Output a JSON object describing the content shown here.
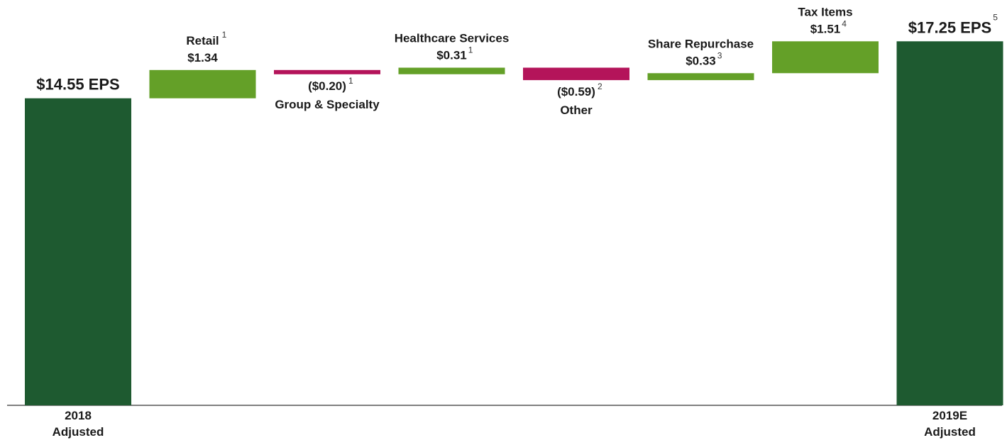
{
  "colors": {
    "total": "#1e5a30",
    "increase": "#64a028",
    "decrease": "#b4145a",
    "axis": "#555555"
  },
  "chart_data": {
    "type": "bar",
    "subtype": "waterfall",
    "title": "",
    "xlabel": "",
    "ylabel": "",
    "ylim": [
      0,
      18.2
    ],
    "grid": false,
    "bars": [
      {
        "kind": "total",
        "value": 14.55,
        "label": "$14.55 EPS",
        "sup": "",
        "name": "",
        "axis_label": [
          "2018",
          "Adjusted"
        ]
      },
      {
        "kind": "increase",
        "value": 1.34,
        "label": "$1.34",
        "sup": "1",
        "name": "Retail"
      },
      {
        "kind": "decrease",
        "value": -0.2,
        "label": "($0.20)",
        "sup": "1",
        "name": "Group & Specialty"
      },
      {
        "kind": "increase",
        "value": 0.31,
        "label": "$0.31",
        "sup": "1",
        "name": "Healthcare Services"
      },
      {
        "kind": "decrease",
        "value": -0.59,
        "label": "($0.59)",
        "sup": "2",
        "name": "Other"
      },
      {
        "kind": "increase",
        "value": 0.33,
        "label": "$0.33",
        "sup": "3",
        "name": "Share Repurchase"
      },
      {
        "kind": "increase",
        "value": 1.51,
        "label": "$1.51",
        "sup": "4",
        "name": "Tax Items"
      },
      {
        "kind": "total",
        "value": 17.25,
        "label": "$17.25 EPS",
        "sup": "5",
        "name": "",
        "axis_label": [
          "2019E",
          "Adjusted"
        ]
      }
    ]
  }
}
